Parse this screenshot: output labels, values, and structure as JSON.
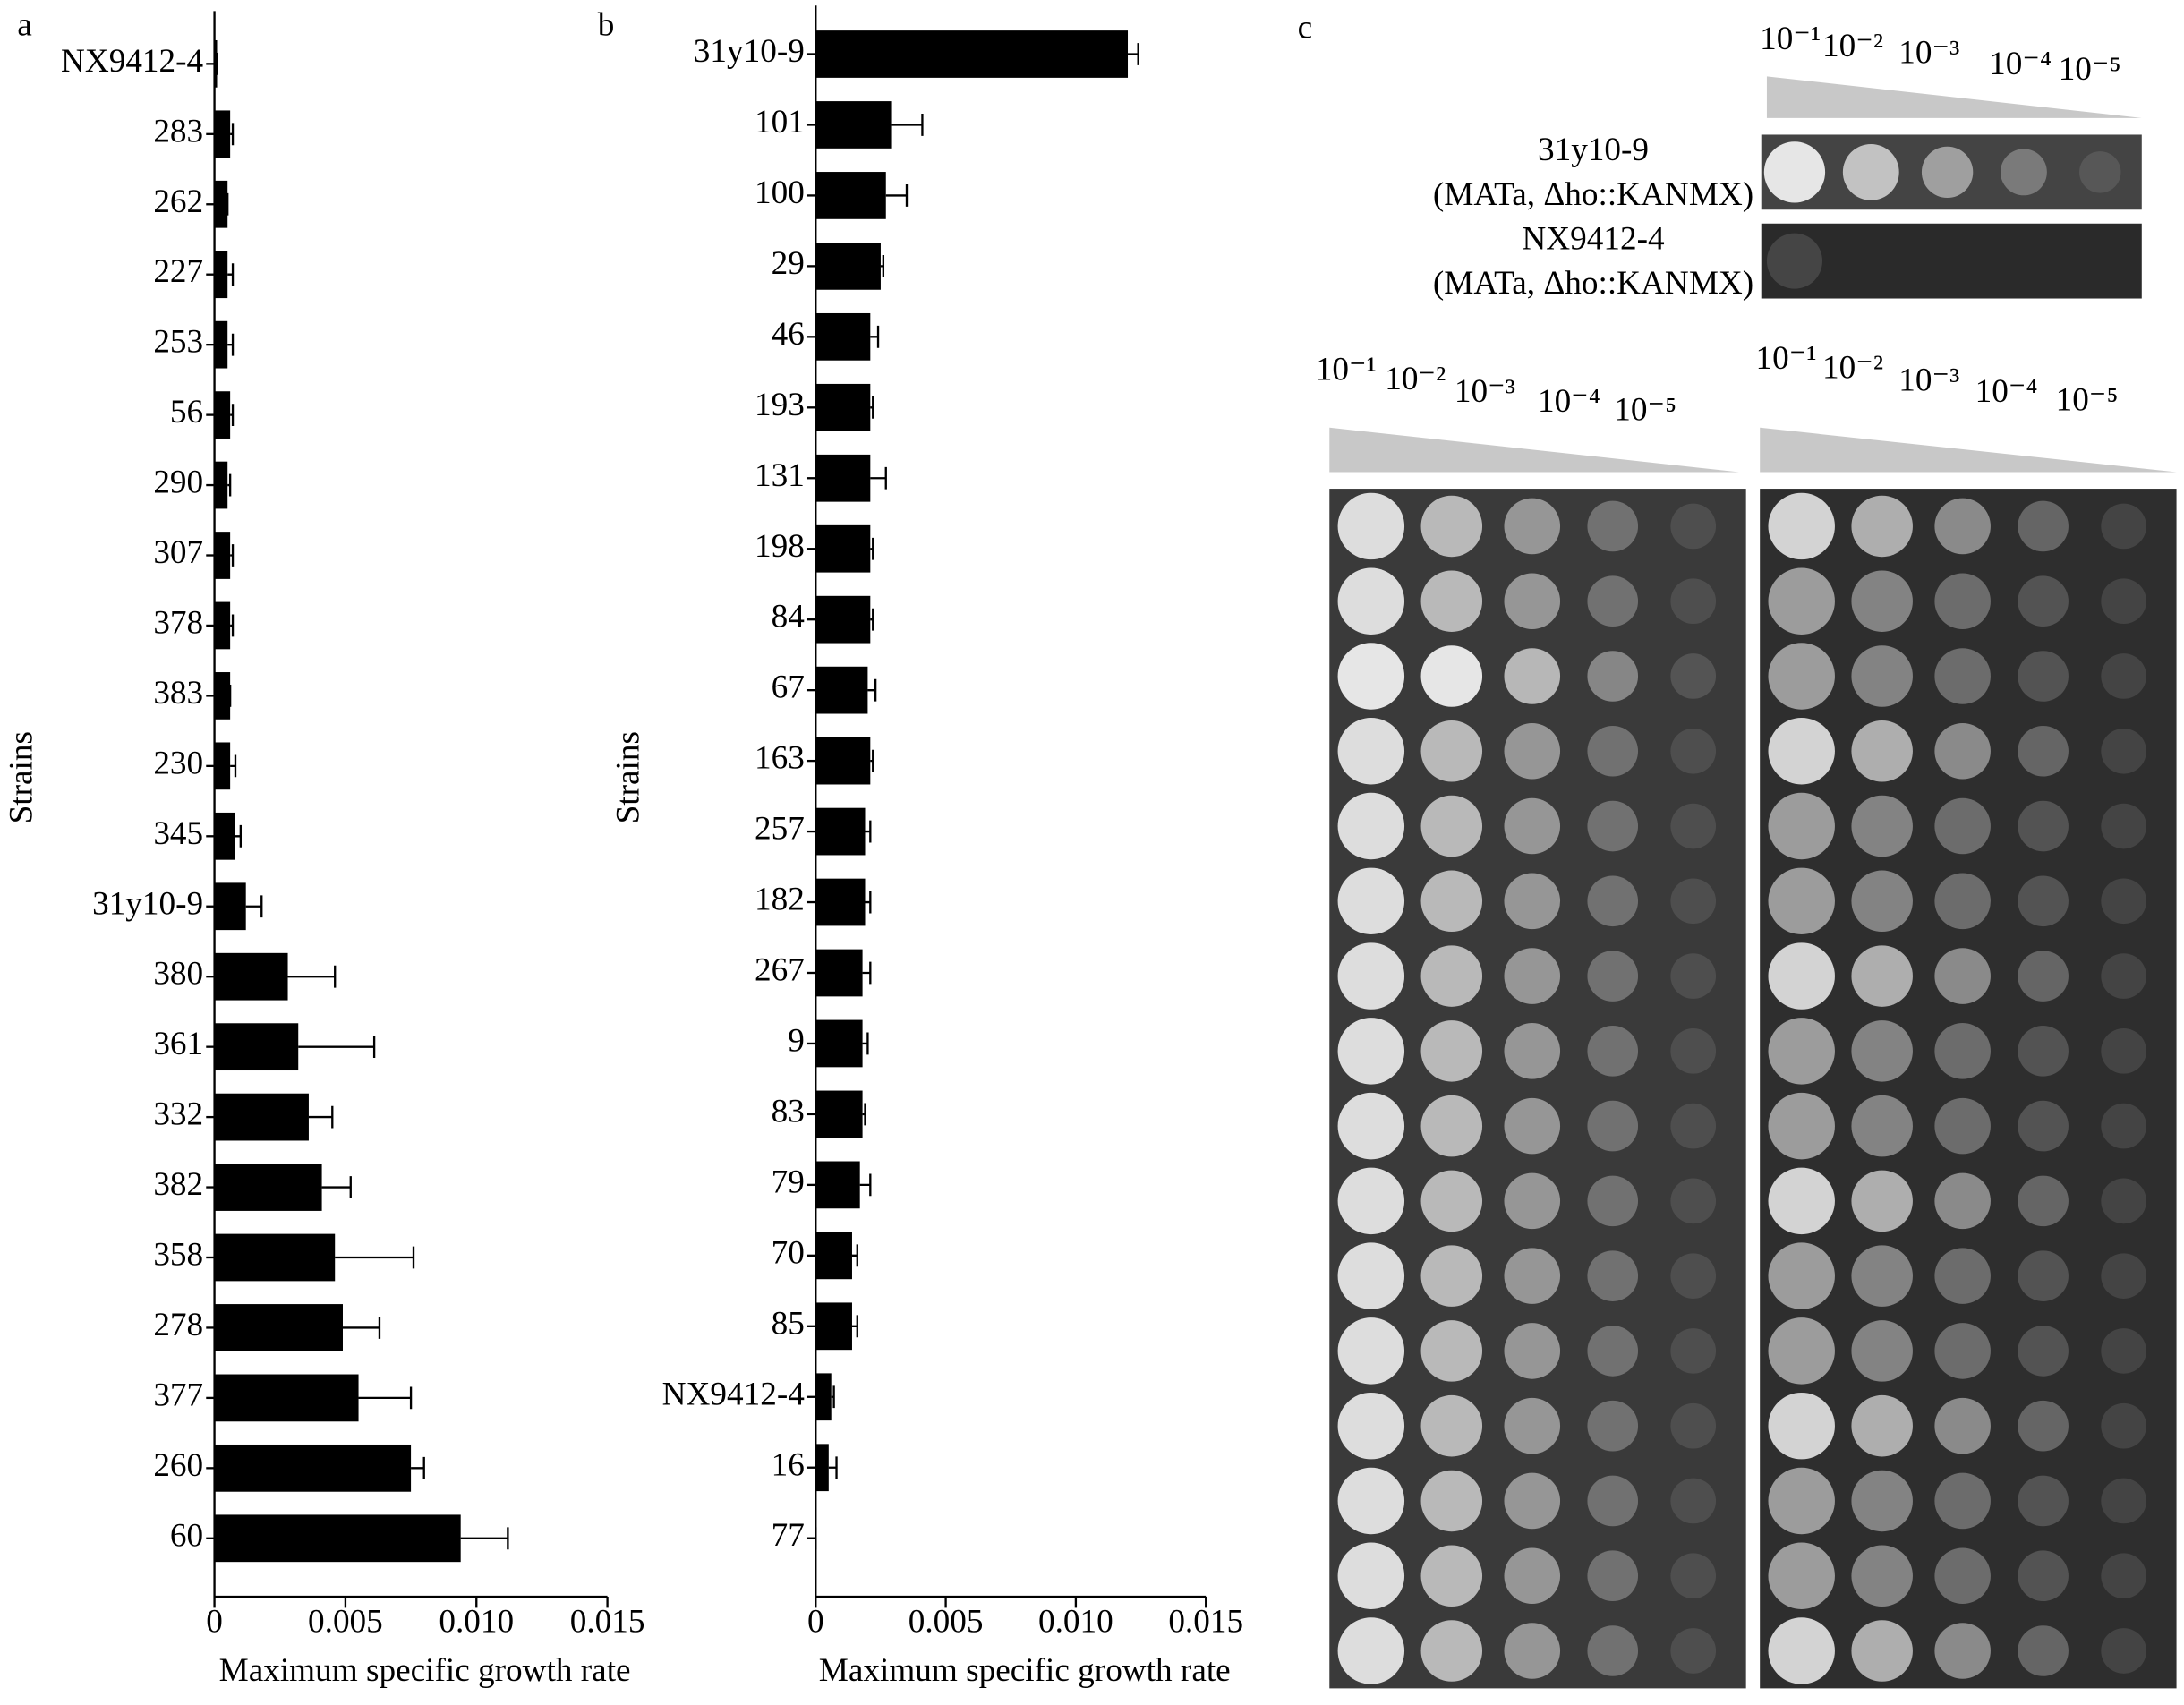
{
  "chart_data": [
    {
      "type": "bar",
      "panel": "a",
      "title": "a",
      "y_label": "Strains",
      "x_label": "Maximum specific growth rate",
      "categories": [
        "NX9412-4",
        "283",
        "262",
        "227",
        "253",
        "56",
        "290",
        "307",
        "378",
        "383",
        "230",
        "345",
        "31y10-9",
        "380",
        "361",
        "332",
        "382",
        "358",
        "278",
        "377",
        "260",
        "60"
      ],
      "values": [
        0.0001,
        0.0006,
        0.0005,
        0.0005,
        0.0005,
        0.0006,
        0.0005,
        0.0006,
        0.0006,
        0.0006,
        0.0006,
        0.0008,
        0.0012,
        0.0028,
        0.0032,
        0.0036,
        0.0041,
        0.0046,
        0.0049,
        0.0055,
        0.0075,
        0.0094
      ],
      "errors": [
        0,
        0.0001,
        0,
        0.0002,
        0.0002,
        0.0001,
        0.0001,
        0.0001,
        0.0001,
        0,
        0.0002,
        0.0002,
        0.0006,
        0.0018,
        0.0029,
        0.0009,
        0.0011,
        0.003,
        0.0014,
        0.002,
        0.0005,
        0.0018
      ],
      "color": "#000000",
      "xlim": [
        0,
        0.015
      ],
      "xticks": [
        0,
        0.005,
        {
          "value": 0.01,
          "label": "0.010"
        },
        0.015
      ]
    },
    {
      "type": "bar",
      "panel": "b",
      "title": "b",
      "y_label": "Strains",
      "x_label": "Maximum specific growth rate",
      "categories": [
        "31y10-9",
        "101",
        "100",
        "29",
        "46",
        "193",
        "131",
        "198",
        "84",
        "67",
        "163",
        "257",
        "182",
        "267",
        "9",
        "83",
        "79",
        "70",
        "85",
        "NX9412-4",
        "16",
        "77"
      ],
      "values": [
        0.012,
        0.0029,
        0.0027,
        0.0025,
        0.0021,
        0.0021,
        0.0021,
        0.0021,
        0.0021,
        0.002,
        0.0021,
        0.0019,
        0.0019,
        0.0018,
        0.0018,
        0.0018,
        0.0017,
        0.0014,
        0.0014,
        0.0006,
        0.0005,
        0
      ],
      "errors": [
        0.0004,
        0.0012,
        0.0008,
        0.0001,
        0.0003,
        0.0001,
        0.0006,
        0.0001,
        0.0001,
        0.0003,
        0.0001,
        0.0002,
        0.0002,
        0.0003,
        0.0002,
        0.0001,
        0.0004,
        0.0002,
        0.0002,
        0.0001,
        0.0003,
        0
      ],
      "color": "#000000",
      "xlim": [
        0,
        0.015
      ],
      "xticks": [
        0,
        0.005,
        {
          "value": 0.01,
          "label": "0.010"
        },
        0.015
      ]
    }
  ],
  "panel_c": {
    "label": "c",
    "dilutions_top": [
      "10⁻¹",
      "10⁻²",
      "10⁻³",
      "10⁻⁴",
      "10⁻⁵"
    ],
    "dilutions_left": [
      "10⁻¹",
      "10⁻²",
      "10⁻³",
      "10⁻⁴",
      "10⁻⁵"
    ],
    "dilutions_right": [
      "10⁻¹",
      "10⁻²",
      "10⁻³",
      "10⁻⁴",
      "10⁻⁵"
    ],
    "strains": [
      {
        "name": "31y10-9",
        "genotype": "(MATa, Δho::KANMX)"
      },
      {
        "name": "NX9412-4",
        "genotype": "(MATa, Δho::KANMX)"
      }
    ]
  }
}
